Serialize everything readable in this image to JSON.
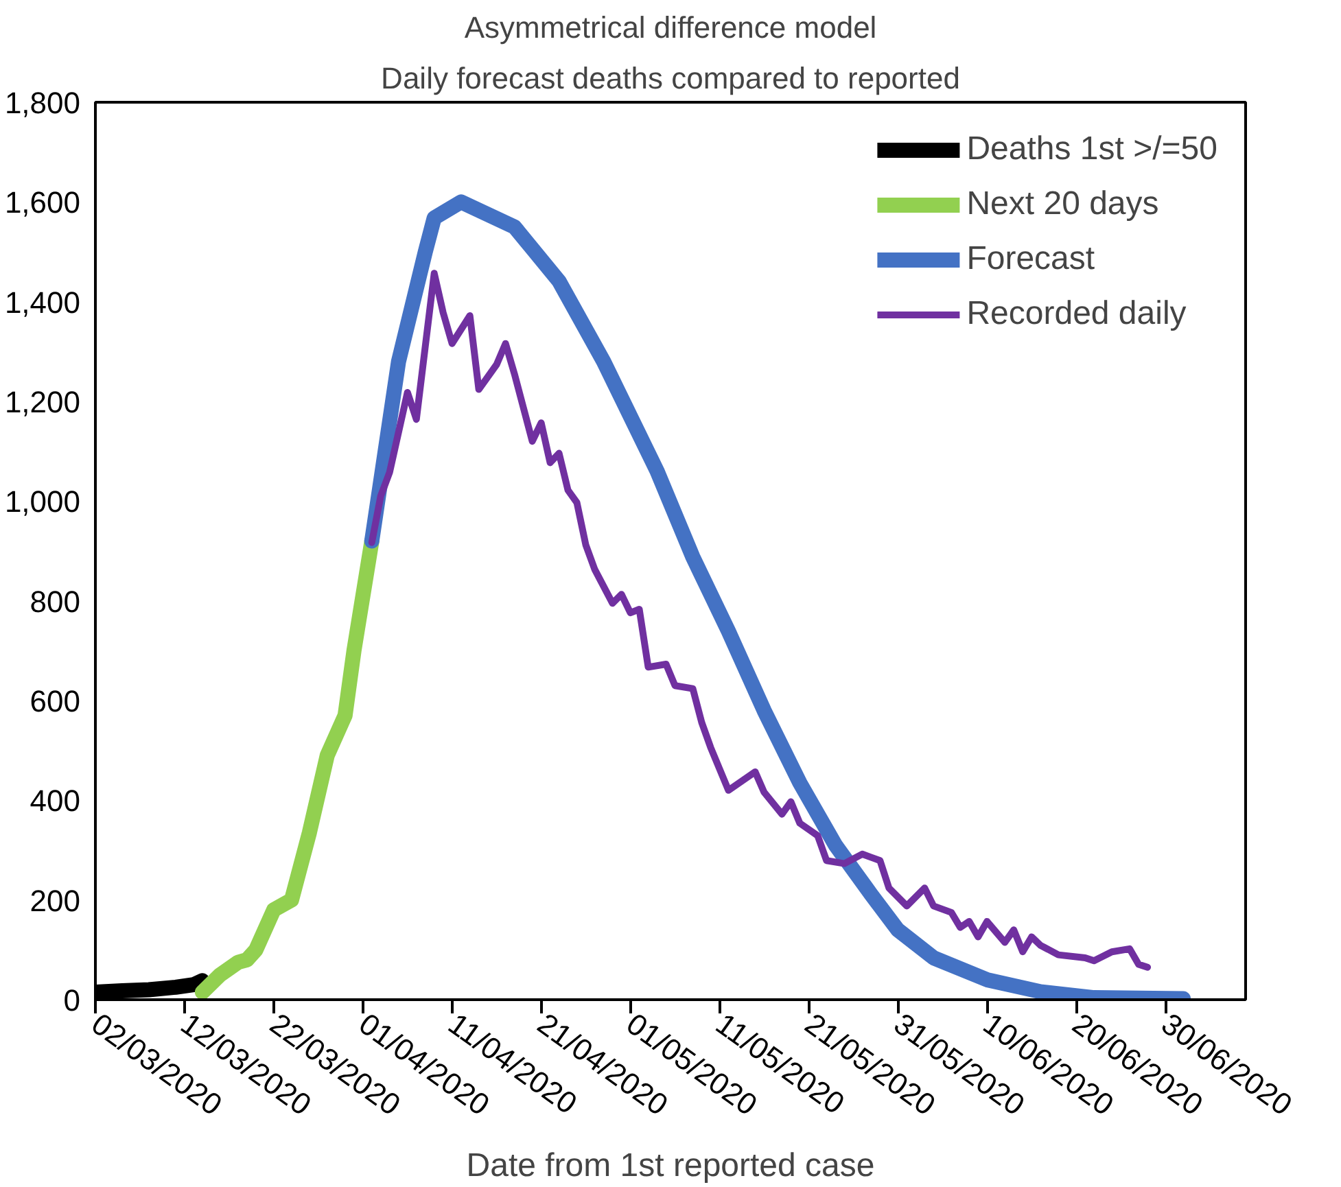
{
  "chart_data": {
    "type": "line",
    "title": "Asymmetrical difference model",
    "subtitle": "Daily forecast deaths compared to reported",
    "xlabel": "Date from 1st reported case",
    "xlim": [
      "2020-03-02",
      "2020-07-09"
    ],
    "xticks": [
      {
        "value": "2020-03-02",
        "label": "02/03/2020"
      },
      {
        "value": "2020-03-12",
        "label": "12/03/2020"
      },
      {
        "value": "2020-03-22",
        "label": "22/03/2020"
      },
      {
        "value": "2020-04-01",
        "label": "01/04/2020"
      },
      {
        "value": "2020-04-11",
        "label": "11/04/2020"
      },
      {
        "value": "2020-04-21",
        "label": "21/04/2020"
      },
      {
        "value": "2020-05-01",
        "label": "01/05/2020"
      },
      {
        "value": "2020-05-11",
        "label": "11/05/2020"
      },
      {
        "value": "2020-05-21",
        "label": "21/05/2020"
      },
      {
        "value": "2020-05-31",
        "label": "31/05/2020"
      },
      {
        "value": "2020-06-10",
        "label": "10/06/2020"
      },
      {
        "value": "2020-06-20",
        "label": "20/06/2020"
      },
      {
        "value": "2020-06-30",
        "label": "30/06/2020"
      }
    ],
    "ylim": [
      0,
      1800
    ],
    "yticks": [
      0,
      200,
      400,
      600,
      800,
      {
        "value": 1000,
        "label": "1,000"
      },
      {
        "value": 1200,
        "label": "1,200"
      },
      {
        "value": 1400,
        "label": "1,400"
      },
      {
        "value": 1600,
        "label": "1,600"
      },
      {
        "value": 1800,
        "label": "1,800"
      }
    ],
    "grid": false,
    "legend": "top right",
    "marker": "none",
    "line_style": "solid",
    "series": [
      {
        "name": "Deaths 1st >/=50",
        "color": "#000000",
        "x": [
          "2020-03-02",
          "2020-03-05",
          "2020-03-08",
          "2020-03-11",
          "2020-03-13",
          "2020-03-14"
        ],
        "values": [
          15,
          18,
          20,
          25,
          30,
          38
        ]
      },
      {
        "name": "Next 20 days",
        "color": "#92d050",
        "x": [
          "2020-03-14",
          "2020-03-16",
          "2020-03-18",
          "2020-03-19",
          "2020-03-20",
          "2020-03-22",
          "2020-03-24",
          "2020-03-26",
          "2020-03-28",
          "2020-03-30",
          "2020-03-31",
          "2020-04-02"
        ],
        "values": [
          15,
          50,
          75,
          80,
          100,
          180,
          200,
          335,
          490,
          570,
          700,
          920
        ]
      },
      {
        "name": "Forecast",
        "color": "#4472c4",
        "x": [
          "2020-04-02",
          "2020-04-05",
          "2020-04-08",
          "2020-04-09",
          "2020-04-12",
          "2020-04-18",
          "2020-04-23",
          "2020-04-28",
          "2020-05-04",
          "2020-05-08",
          "2020-05-12",
          "2020-05-16",
          "2020-05-20",
          "2020-05-24",
          "2020-05-28",
          "2020-05-31",
          "2020-06-04",
          "2020-06-10",
          "2020-06-16",
          "2020-06-22",
          "2020-07-02"
        ],
        "values": [
          920,
          1280,
          1500,
          1568,
          1600,
          1550,
          1441,
          1280,
          1060,
          888,
          739,
          580,
          435,
          310,
          211,
          140,
          84,
          40,
          16,
          4,
          2
        ]
      },
      {
        "name": "Recorded daily",
        "color": "#7030a0",
        "x": [
          "2020-04-02",
          "2020-04-03",
          "2020-04-04",
          "2020-04-06",
          "2020-04-07",
          "2020-04-09",
          "2020-04-10",
          "2020-04-11",
          "2020-04-13",
          "2020-04-14",
          "2020-04-16",
          "2020-04-17",
          "2020-04-18",
          "2020-04-20",
          "2020-04-21",
          "2020-04-22",
          "2020-04-23",
          "2020-04-24",
          "2020-04-25",
          "2020-04-26",
          "2020-04-27",
          "2020-04-29",
          "2020-04-30",
          "2020-05-01",
          "2020-05-02",
          "2020-05-03",
          "2020-05-05",
          "2020-05-06",
          "2020-05-08",
          "2020-05-09",
          "2020-05-10",
          "2020-05-12",
          "2020-05-15",
          "2020-05-16",
          "2020-05-18",
          "2020-05-19",
          "2020-05-20",
          "2020-05-22",
          "2020-05-23",
          "2020-05-25",
          "2020-05-27",
          "2020-05-29",
          "2020-05-30",
          "2020-06-01",
          "2020-06-03",
          "2020-06-04",
          "2020-06-06",
          "2020-06-07",
          "2020-06-08",
          "2020-06-09",
          "2020-06-10",
          "2020-06-12",
          "2020-06-13",
          "2020-06-14",
          "2020-06-15",
          "2020-06-16",
          "2020-06-18",
          "2020-06-21",
          "2020-06-22",
          "2020-06-24",
          "2020-06-26",
          "2020-06-27",
          "2020-06-28"
        ],
        "values": [
          917,
          1010,
          1058,
          1218,
          1164,
          1457,
          1378,
          1316,
          1372,
          1224,
          1274,
          1316,
          1255,
          1120,
          1157,
          1077,
          1096,
          1022,
          997,
          912,
          863,
          795,
          813,
          776,
          783,
          667,
          673,
          630,
          624,
          556,
          506,
          420,
          457,
          416,
          372,
          397,
          354,
          329,
          279,
          273,
          292,
          279,
          224,
          188,
          224,
          188,
          175,
          145,
          157,
          126,
          157,
          115,
          140,
          96,
          126,
          109,
          90,
          84,
          78,
          96,
          102,
          71,
          65
        ]
      }
    ]
  }
}
